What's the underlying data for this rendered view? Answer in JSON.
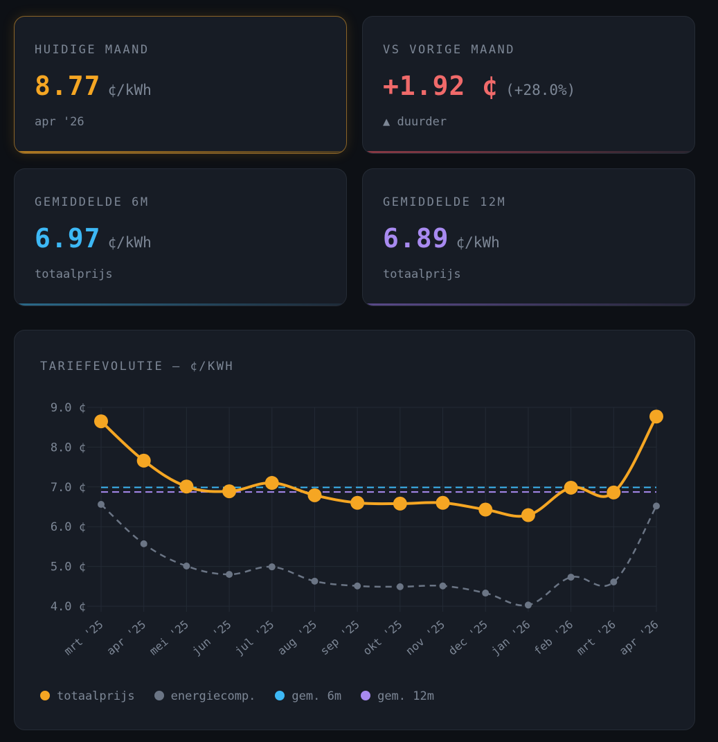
{
  "cards": [
    {
      "label": "HUIDIGE MAAND",
      "value": "8.77",
      "unit": "¢/kWh",
      "sub": "apr '26",
      "color": "#f5a623"
    },
    {
      "label": "VS VORIGE MAAND",
      "value": "+1.92 ¢",
      "unit": "(+28.0%)",
      "sub": "▲ duurder",
      "color": "#f06a6a"
    },
    {
      "label": "GEMIDDELDE 6M",
      "value": "6.97",
      "unit": "¢/kWh",
      "sub": "totaalprijs",
      "color": "#3db8f5"
    },
    {
      "label": "GEMIDDELDE 12M",
      "value": "6.89",
      "unit": "¢/kWh",
      "sub": "totaalprijs",
      "color": "#a88af0"
    }
  ],
  "chart_data": {
    "type": "line",
    "title": "TARIEFEVOLUTIE — ¢/KWH",
    "categories": [
      "mrt '25",
      "apr '25",
      "mei '25",
      "jun '25",
      "jul '25",
      "aug '25",
      "sep '25",
      "okt '25",
      "nov '25",
      "dec '25",
      "jan '26",
      "feb '26",
      "mrt '26",
      "apr '26"
    ],
    "ylim": [
      4.0,
      9.0
    ],
    "yticks": [
      "9.0 ¢",
      "8.0 ¢",
      "7.0 ¢",
      "6.0 ¢",
      "5.0 ¢",
      "4.0 ¢"
    ],
    "ytick_values": [
      9,
      8,
      7,
      6,
      5,
      4
    ],
    "grid": true,
    "legend_position": "bottom-left",
    "series": [
      {
        "name": "totaalprijs",
        "color": "#f5a623",
        "values": [
          8.65,
          7.66,
          7.01,
          6.89,
          7.1,
          6.79,
          6.6,
          6.58,
          6.6,
          6.43,
          6.29,
          6.98,
          6.86,
          8.77
        ]
      },
      {
        "name": "energiecomp.",
        "color": "#6b7585",
        "values": [
          6.56,
          5.57,
          5.01,
          4.8,
          4.99,
          4.63,
          4.51,
          4.49,
          4.51,
          4.33,
          4.03,
          4.73,
          4.61,
          6.52
        ]
      },
      {
        "name": "gem. 6m",
        "color": "#3db8f5",
        "constant": 6.97
      },
      {
        "name": "gem. 12m",
        "color": "#a88af0",
        "constant": 6.89
      }
    ]
  }
}
